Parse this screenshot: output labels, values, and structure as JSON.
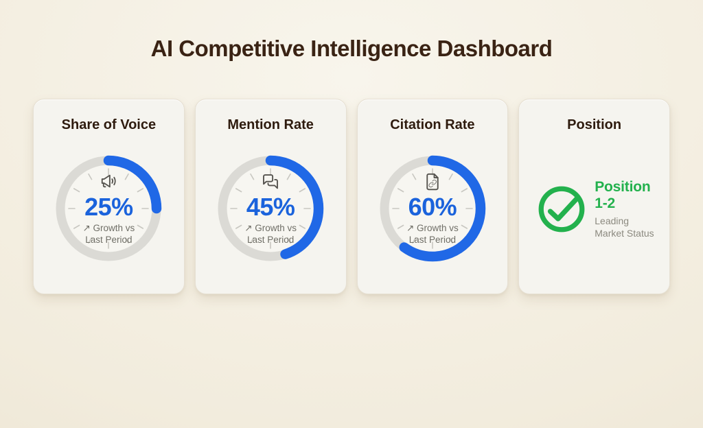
{
  "title": "AI Competitive Intelligence Dashboard",
  "colors": {
    "accent_blue": "#2068e6",
    "accent_green": "#23b14d",
    "gauge_track": "#dbdad5",
    "background_cream": "#f2ecdd",
    "card_background": "#f5f4ef",
    "title_brown": "#3a2314"
  },
  "cards": [
    {
      "title": "Share of Voice",
      "icon": "megaphone-icon",
      "percent": 25,
      "value_label": "25%",
      "trend_line1": "↗ Growth vs",
      "trend_line2": "Last Period"
    },
    {
      "title": "Mention Rate",
      "icon": "chat-bubbles-icon",
      "percent": 45,
      "value_label": "45%",
      "trend_line1": "↗ Growth vs",
      "trend_line2": "Last Period"
    },
    {
      "title": "Citation Rate",
      "icon": "document-link-icon",
      "percent": 60,
      "value_label": "60%",
      "trend_line1": "↗ Growth vs",
      "trend_line2": "Last Period"
    },
    {
      "title": "Position",
      "icon": "check-circle-icon",
      "value_label": "Position 1-2",
      "subtitle": "Leading Market Status"
    }
  ],
  "chart_data": [
    {
      "type": "gauge",
      "title": "Share of Voice",
      "value": 25,
      "max": 100,
      "unit": "%",
      "annotation": "Growth vs Last Period",
      "color": "#2068e6",
      "start_angle_deg": 0,
      "direction": "clockwise"
    },
    {
      "type": "gauge",
      "title": "Mention Rate",
      "value": 45,
      "max": 100,
      "unit": "%",
      "annotation": "Growth vs Last Period",
      "color": "#2068e6",
      "start_angle_deg": 0,
      "direction": "clockwise"
    },
    {
      "type": "gauge",
      "title": "Citation Rate",
      "value": 60,
      "max": 100,
      "unit": "%",
      "annotation": "Growth vs Last Period",
      "color": "#2068e6",
      "start_angle_deg": 0,
      "direction": "clockwise"
    },
    {
      "type": "status",
      "title": "Position",
      "value": "Position 1-2",
      "annotation": "Leading Market Status",
      "color": "#23b14d"
    }
  ]
}
